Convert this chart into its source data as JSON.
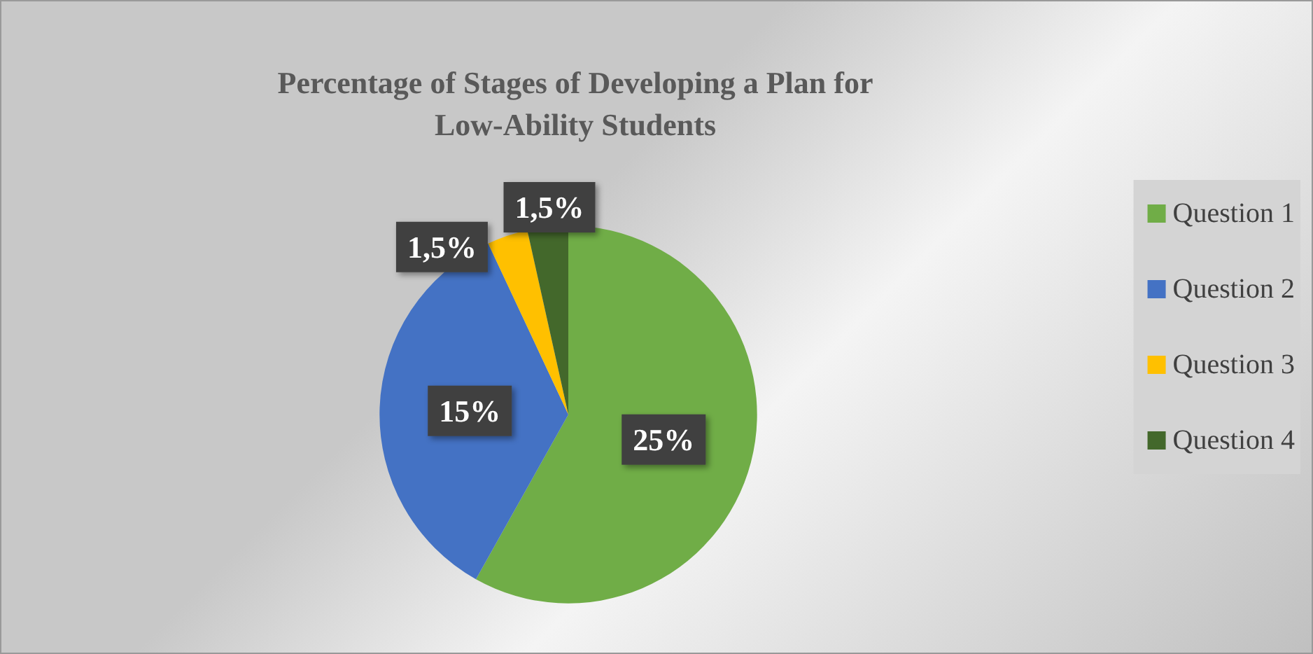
{
  "chart_data": {
    "type": "pie",
    "title": "Percentage of Stages of Developing a Plan for\nLow-Ability Students",
    "categories": [
      "Question 1",
      "Question 2",
      "Question 3",
      "Question 4"
    ],
    "values": [
      25,
      15,
      1.5,
      1.5
    ],
    "value_labels": [
      "25%",
      "15%",
      "1,5%",
      "1,5%"
    ],
    "colors": [
      "#70ad47",
      "#4472c4",
      "#ffc000",
      "#43682b"
    ],
    "legend": "right"
  }
}
